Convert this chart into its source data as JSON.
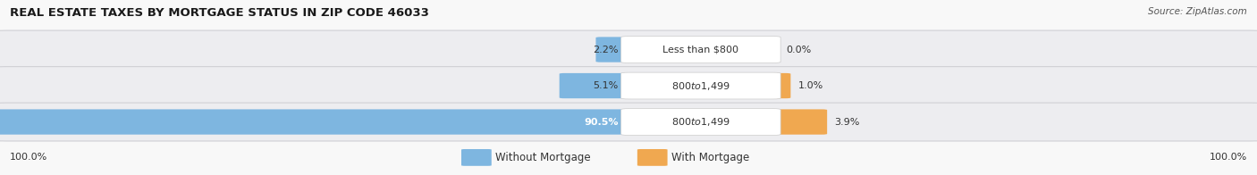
{
  "title": "REAL ESTATE TAXES BY MORTGAGE STATUS IN ZIP CODE 46033",
  "source": "Source: ZipAtlas.com",
  "rows": [
    {
      "label": "Less than $800",
      "without_mortgage": 2.2,
      "with_mortgage": 0.0
    },
    {
      "label": "$800 to $1,499",
      "without_mortgage": 5.1,
      "with_mortgage": 1.0
    },
    {
      "label": "$800 to $1,499",
      "without_mortgage": 90.5,
      "with_mortgage": 3.9
    }
  ],
  "color_without": "#7EB6E0",
  "color_with": "#F0A850",
  "bg_row": "#EDEDF0",
  "bg_fig": "#F8F8F8",
  "bg_label_box": "#FFFFFF",
  "total_scale": 100.0,
  "left_label": "100.0%",
  "right_label": "100.0%",
  "legend_without": "Without Mortgage",
  "legend_with": "With Mortgage",
  "title_fontsize": 9.5,
  "source_fontsize": 7.5,
  "bar_label_fontsize": 8,
  "pct_fontsize": 8,
  "legend_fontsize": 8.5
}
